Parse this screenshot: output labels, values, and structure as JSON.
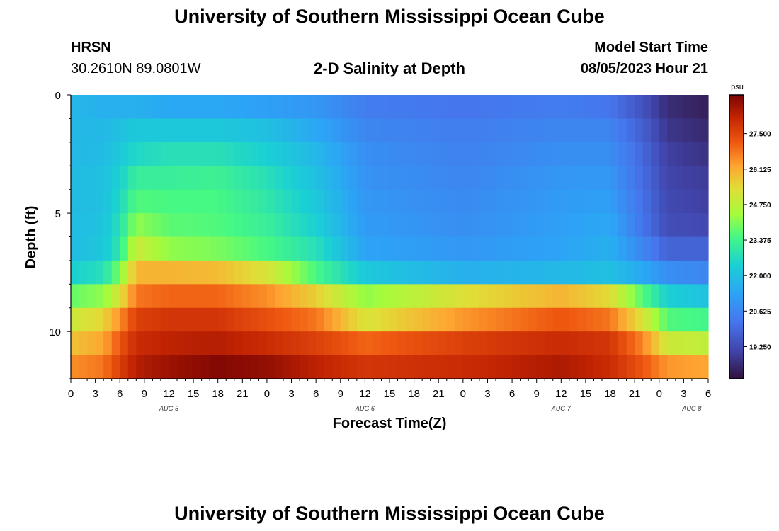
{
  "page": {
    "title_top": "University of Southern Mississippi Ocean Cube",
    "title_bottom": "University of Southern Mississippi Ocean Cube",
    "station": "HRSN",
    "coords": "30.2610N  89.0801W",
    "center_title": "2-D Salinity at Depth",
    "model_label": "Model Start Time",
    "model_time": "08/05/2023 Hour 21"
  },
  "chart_data": {
    "type": "heatmap",
    "title": "2-D Salinity at Depth",
    "xlabel": "Forecast Time(Z)",
    "ylabel": "Depth (ft)",
    "colorbar_unit": "psu",
    "x_tick_labels": [
      "0",
      "3",
      "6",
      "9",
      "12",
      "15",
      "18",
      "21",
      "0",
      "3",
      "6",
      "9",
      "12",
      "15",
      "18",
      "21",
      "0",
      "3",
      "6",
      "9",
      "12",
      "15",
      "18",
      "21",
      "0",
      "3",
      "6"
    ],
    "date_labels": [
      {
        "text": "AUG 5",
        "hour": 12
      },
      {
        "text": "AUG 6",
        "hour": 36
      },
      {
        "text": "AUG 7",
        "hour": 60
      },
      {
        "text": "AUG 8",
        "hour": 76
      }
    ],
    "xlim": [
      0,
      78
    ],
    "y_tick_labels": [
      "0",
      "5",
      "10"
    ],
    "y_ticks": [
      0,
      5,
      10
    ],
    "ylim": [
      0,
      12
    ],
    "depth_levels_ft": [
      0.5,
      1.5,
      2.5,
      3.5,
      4.5,
      5.5,
      6.5,
      7.5,
      8.5,
      9.5,
      10.5,
      11.5
    ],
    "colorbar_ticks": [
      "27.500",
      "26.125",
      "24.750",
      "23.375",
      "22.000",
      "20.625",
      "19.250"
    ],
    "colorbar_tick_values": [
      27.5,
      26.125,
      24.75,
      23.375,
      22.0,
      20.625,
      19.25
    ],
    "color_range": [
      18.0,
      29.0
    ],
    "key_hours": [
      0,
      4,
      6,
      8,
      12,
      18,
      24,
      30,
      36,
      48,
      60,
      66,
      70,
      73,
      78
    ],
    "salinity_by_depth": [
      [
        21.8,
        21.6,
        21.6,
        21.6,
        21.4,
        21.4,
        21.2,
        21.0,
        20.4,
        20.2,
        20.4,
        20.2,
        19.4,
        18.6,
        18.3
      ],
      [
        21.8,
        21.8,
        22.0,
        22.2,
        22.2,
        22.2,
        22.0,
        21.4,
        20.6,
        20.4,
        20.6,
        20.6,
        19.7,
        18.8,
        18.5
      ],
      [
        21.8,
        21.9,
        22.2,
        22.6,
        22.8,
        22.8,
        22.4,
        21.8,
        20.8,
        20.5,
        20.8,
        20.8,
        19.9,
        19.0,
        18.7
      ],
      [
        21.9,
        22.0,
        22.4,
        23.2,
        23.2,
        23.3,
        22.8,
        22.0,
        20.9,
        20.6,
        21.0,
        21.0,
        20.0,
        19.1,
        18.9
      ],
      [
        21.9,
        22.0,
        22.6,
        23.6,
        23.5,
        23.5,
        23.0,
        22.2,
        21.0,
        20.7,
        21.1,
        21.2,
        20.1,
        19.2,
        19.0
      ],
      [
        21.9,
        22.1,
        22.8,
        24.2,
        23.7,
        23.6,
        23.2,
        22.4,
        21.1,
        20.8,
        21.2,
        21.4,
        20.2,
        19.3,
        19.2
      ],
      [
        21.9,
        22.2,
        23.0,
        25.0,
        24.2,
        24.0,
        23.5,
        22.8,
        21.3,
        21.0,
        21.3,
        21.6,
        20.6,
        19.8,
        19.8
      ],
      [
        22.4,
        22.8,
        24.0,
        26.0,
        26.0,
        25.9,
        25.2,
        23.5,
        22.2,
        21.6,
        21.8,
        22.0,
        21.4,
        20.8,
        20.6
      ],
      [
        23.8,
        24.2,
        25.2,
        26.8,
        27.0,
        27.0,
        26.5,
        25.6,
        24.2,
        25.3,
        26.0,
        25.4,
        23.6,
        22.4,
        22.0
      ],
      [
        25.0,
        25.5,
        26.5,
        27.6,
        27.8,
        27.8,
        27.3,
        26.8,
        25.2,
        26.4,
        27.2,
        26.8,
        25.2,
        23.6,
        23.4
      ],
      [
        25.8,
        26.2,
        27.2,
        28.0,
        28.2,
        28.3,
        28.0,
        27.6,
        27.0,
        27.6,
        28.0,
        27.8,
        26.6,
        25.0,
        24.8
      ],
      [
        26.5,
        26.8,
        27.6,
        28.3,
        28.6,
        28.9,
        28.7,
        28.2,
        27.8,
        28.0,
        28.4,
        28.0,
        27.2,
        26.4,
        26.2
      ]
    ],
    "grid": false
  }
}
